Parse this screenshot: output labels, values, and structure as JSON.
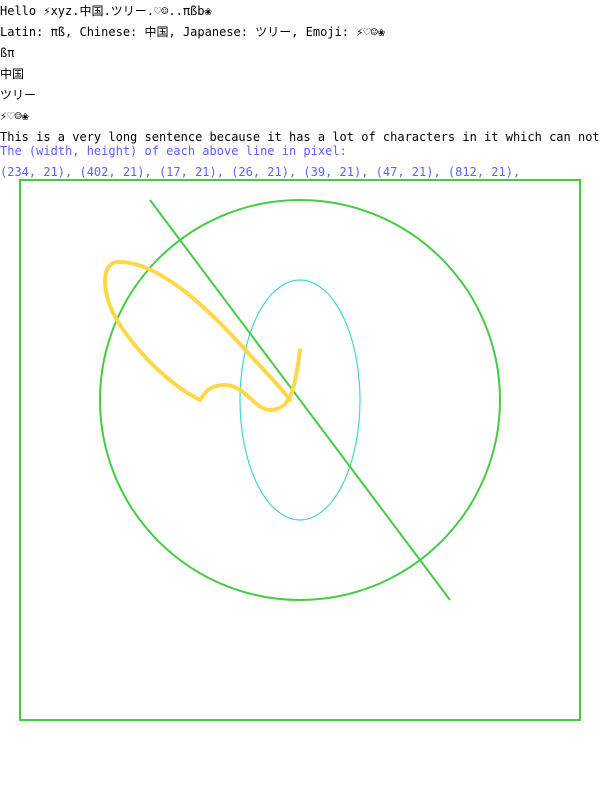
{
  "lines": {
    "hello": "Hello ⚡xyz.中国.ツリー.♡☺..πßb❀",
    "scripts": "Latin: πß, Chinese: 中国, Japanese: ツリー, Emoji: ⚡♡☺❀",
    "latin": "ßπ",
    "chinese": "中国",
    "japanese": "ツリー",
    "emoji": "⚡♡☺❀",
    "long_sentence": "This is a very long sentence because it has a lot of characters in it which can not be"
  },
  "measure": {
    "caption": "The (width, height) of each above line in pixel:",
    "values": "(234, 21), (402, 21), (17, 21), (26, 21), (39, 21), (47, 21), (812, 21),"
  },
  "colors": {
    "text": "#000000",
    "measure_text": "#6060ff",
    "rectangle": "#44cc44",
    "big_circle": "#44cc44",
    "diagonal_line": "#44cc44",
    "ellipse": "#44d6c8",
    "curve": "#ffd84a"
  }
}
